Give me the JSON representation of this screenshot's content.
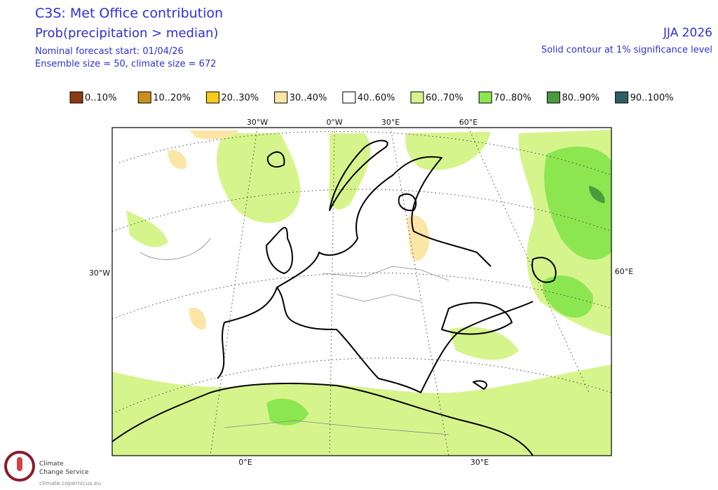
{
  "header": {
    "title": "C3S: Met Office contribution",
    "subtitle": "Prob(precipitation > median)",
    "forecast_start": "Nominal forecast start: 01/04/26",
    "ensemble": "Ensemble size = 50, climate size = 672",
    "season": "JJA 2026",
    "note": "Solid contour at 1% significance level"
  },
  "legend": [
    {
      "label": "0..10%",
      "color": "#8b3a10"
    },
    {
      "label": "10..20%",
      "color": "#c8901a"
    },
    {
      "label": "20..30%",
      "color": "#f5cc1a"
    },
    {
      "label": "30..40%",
      "color": "#fbe6a6"
    },
    {
      "label": "40..60%",
      "color": "#ffffff"
    },
    {
      "label": "60..70%",
      "color": "#d6f48c"
    },
    {
      "label": "70..80%",
      "color": "#8ce650"
    },
    {
      "label": "80..90%",
      "color": "#4a9a3e"
    },
    {
      "label": "90..100%",
      "color": "#2e5e66"
    }
  ],
  "graticule_labels": {
    "top": [
      "30°W",
      "0°W",
      "30°E",
      "60°E"
    ],
    "left": [
      "30°W"
    ],
    "right": [
      "60°E"
    ],
    "bottom": [
      "0°E",
      "30°E"
    ]
  },
  "logo": {
    "line1": "Climate",
    "line2": "Change Service",
    "url": "climate.copernicus.eu"
  }
}
